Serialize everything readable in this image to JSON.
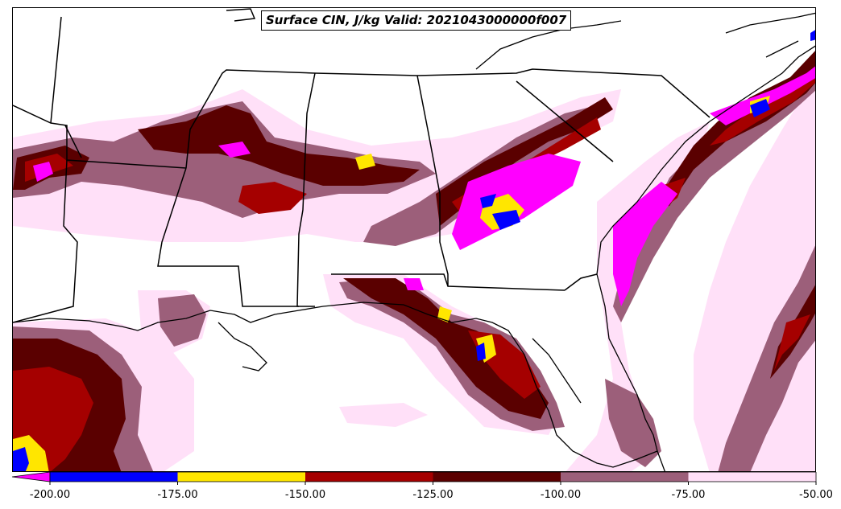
{
  "title": "Surface CIN, J/kg Valid: 2021043000000f007",
  "colorbar": {
    "levels": [
      {
        "from": -200,
        "to": -175,
        "color": "#0000ff"
      },
      {
        "from": -175,
        "to": -150,
        "color": "#ffe600"
      },
      {
        "from": -150,
        "to": -125,
        "color": "#a50000"
      },
      {
        "from": -125,
        "to": -100,
        "color": "#5a0000"
      },
      {
        "from": -100,
        "to": -75,
        "color": "#9c5f7a"
      },
      {
        "from": -75,
        "to": -50,
        "color": "#ffe0f8"
      }
    ],
    "extend_below_color": "#ff00ff",
    "tick_labels": [
      "-200.00",
      "-175.00",
      "-150.00",
      "-125.00",
      "-100.00",
      "-75.00",
      "-50.00"
    ]
  },
  "map": {
    "region": "Southeastern United States and Gulf of Mexico",
    "variable": "Surface CIN",
    "units": "J/kg"
  }
}
